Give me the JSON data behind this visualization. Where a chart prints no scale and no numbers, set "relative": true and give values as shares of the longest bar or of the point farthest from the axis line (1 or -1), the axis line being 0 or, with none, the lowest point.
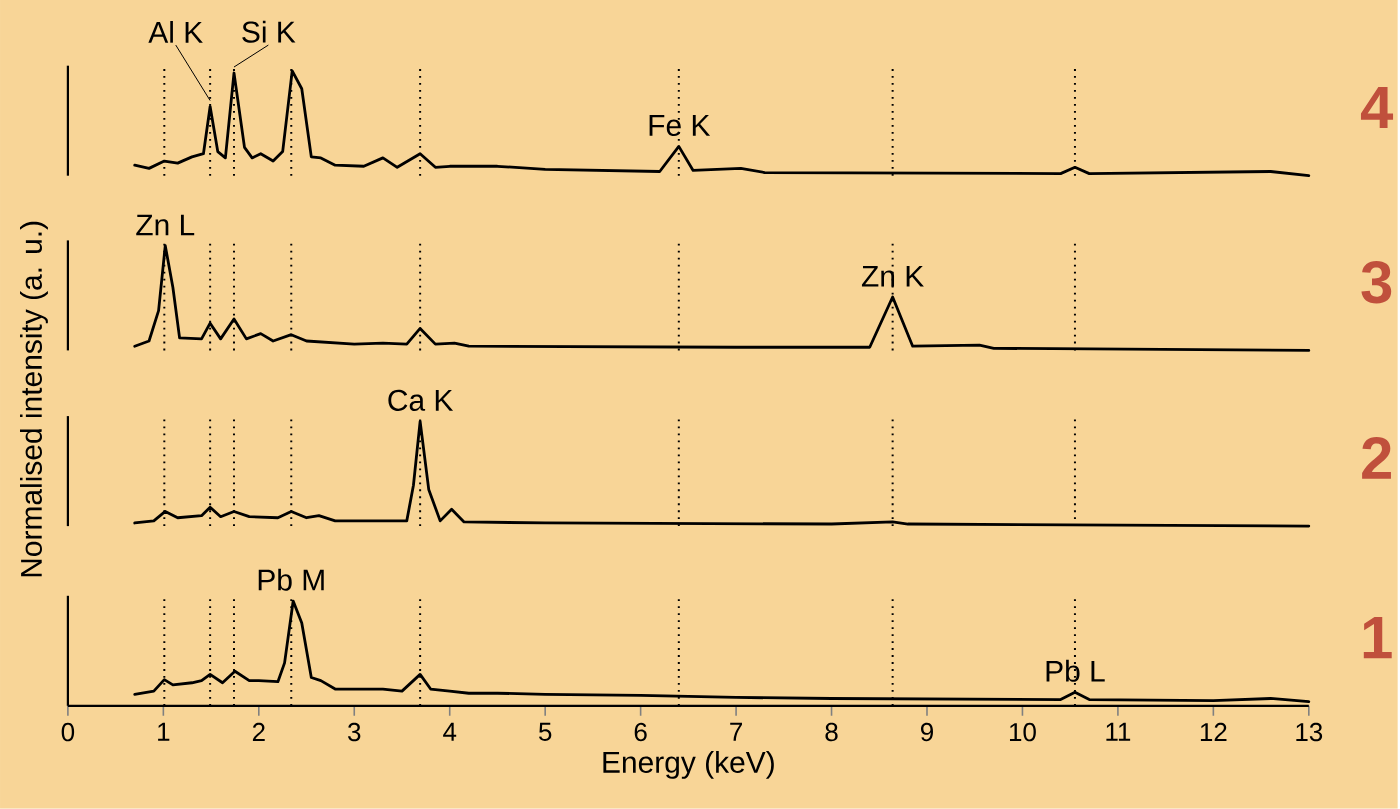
{
  "chart_data": [
    {
      "type": "line",
      "relative": true,
      "xlim": [
        0,
        13
      ],
      "tick_labels": false,
      "line_style": "solid",
      "marker": "none",
      "x": [
        0.7,
        0.85,
        1.01,
        1.15,
        1.3,
        1.42,
        1.49,
        1.57,
        1.65,
        1.74,
        1.85,
        1.93,
        2.02,
        2.15,
        2.25,
        2.35,
        2.45,
        2.55,
        2.65,
        2.8,
        3.1,
        3.3,
        3.45,
        3.69,
        3.85,
        4.0,
        4.5,
        5.0,
        6.2,
        6.4,
        6.55,
        7.05,
        7.3,
        10.4,
        10.55,
        10.7,
        12.6,
        13.0
      ],
      "series": [
        {
          "color": "#000000",
          "values": [
            0.1,
            0.07,
            0.14,
            0.12,
            0.18,
            0.21,
            0.66,
            0.23,
            0.17,
            0.98,
            0.27,
            0.17,
            0.21,
            0.14,
            0.23,
            1.0,
            0.83,
            0.18,
            0.17,
            0.1,
            0.09,
            0.17,
            0.08,
            0.21,
            0.08,
            0.09,
            0.09,
            0.06,
            0.04,
            0.28,
            0.05,
            0.07,
            0.03,
            0.02,
            0.08,
            0.02,
            0.04,
            0.0
          ]
        }
      ],
      "ref_lines": [
        {
          "axis": "x",
          "value": 1.01,
          "color": "#000000",
          "line_style": "dotted"
        },
        {
          "axis": "x",
          "value": 1.49,
          "color": "#000000",
          "line_style": "dotted"
        },
        {
          "axis": "x",
          "value": 1.74,
          "color": "#000000",
          "line_style": "dotted"
        },
        {
          "axis": "x",
          "value": 2.34,
          "color": "#000000",
          "line_style": "dotted"
        },
        {
          "axis": "x",
          "value": 3.69,
          "color": "#000000",
          "line_style": "dotted"
        },
        {
          "axis": "x",
          "value": 6.4,
          "color": "#000000",
          "line_style": "dotted"
        },
        {
          "axis": "x",
          "value": 8.64,
          "color": "#000000",
          "line_style": "dotted"
        },
        {
          "axis": "x",
          "value": 10.55,
          "color": "#000000",
          "line_style": "dotted"
        }
      ],
      "annotations": [
        "4",
        {
          "text": "Al K",
          "x": 1.49,
          "y": 0.66
        },
        {
          "text": "Si K",
          "x": 1.74,
          "y": 0.98
        },
        {
          "text": "Fe K",
          "x": 6.4,
          "y": 0.28
        }
      ]
    },
    {
      "type": "line",
      "relative": true,
      "xlim": [
        0,
        13
      ],
      "tick_labels": false,
      "line_style": "solid",
      "marker": "none",
      "x": [
        0.7,
        0.85,
        0.95,
        1.02,
        1.1,
        1.17,
        1.4,
        1.49,
        1.6,
        1.74,
        1.87,
        2.02,
        2.15,
        2.34,
        2.5,
        3.0,
        3.3,
        3.55,
        3.69,
        3.85,
        4.05,
        4.2,
        7.0,
        8.4,
        8.64,
        8.85,
        9.55,
        9.7,
        13.0
      ],
      "series": [
        {
          "color": "#000000",
          "values": [
            0.04,
            0.09,
            0.38,
            1.0,
            0.6,
            0.12,
            0.11,
            0.26,
            0.11,
            0.3,
            0.11,
            0.16,
            0.09,
            0.15,
            0.09,
            0.06,
            0.07,
            0.06,
            0.21,
            0.06,
            0.07,
            0.04,
            0.03,
            0.03,
            0.51,
            0.04,
            0.05,
            0.02,
            0.0
          ]
        }
      ],
      "ref_lines": [
        {
          "axis": "x",
          "value": 1.01,
          "color": "#000000",
          "line_style": "dotted"
        },
        {
          "axis": "x",
          "value": 1.49,
          "color": "#000000",
          "line_style": "dotted"
        },
        {
          "axis": "x",
          "value": 1.74,
          "color": "#000000",
          "line_style": "dotted"
        },
        {
          "axis": "x",
          "value": 2.34,
          "color": "#000000",
          "line_style": "dotted"
        },
        {
          "axis": "x",
          "value": 3.69,
          "color": "#000000",
          "line_style": "dotted"
        },
        {
          "axis": "x",
          "value": 6.4,
          "color": "#000000",
          "line_style": "dotted"
        },
        {
          "axis": "x",
          "value": 8.64,
          "color": "#000000",
          "line_style": "dotted"
        },
        {
          "axis": "x",
          "value": 10.55,
          "color": "#000000",
          "line_style": "dotted"
        }
      ],
      "annotations": [
        "3",
        {
          "text": "Zn L",
          "x": 1.02,
          "y": 1.0
        },
        {
          "text": "Zn K",
          "x": 8.64,
          "y": 0.51
        }
      ]
    },
    {
      "type": "line",
      "relative": true,
      "xlim": [
        0,
        13
      ],
      "tick_labels": false,
      "line_style": "solid",
      "marker": "none",
      "x": [
        0.7,
        0.9,
        1.02,
        1.15,
        1.4,
        1.49,
        1.6,
        1.74,
        1.9,
        2.2,
        2.34,
        2.5,
        2.63,
        2.8,
        3.3,
        3.55,
        3.62,
        3.69,
        3.78,
        3.9,
        4.02,
        4.15,
        5.0,
        8.0,
        8.64,
        8.8,
        13.0
      ],
      "series": [
        {
          "color": "#000000",
          "values": [
            0.03,
            0.05,
            0.14,
            0.08,
            0.1,
            0.18,
            0.09,
            0.14,
            0.09,
            0.08,
            0.14,
            0.08,
            0.1,
            0.05,
            0.05,
            0.05,
            0.39,
            1.0,
            0.35,
            0.05,
            0.16,
            0.04,
            0.03,
            0.02,
            0.04,
            0.02,
            0.0
          ]
        }
      ],
      "ref_lines": [
        {
          "axis": "x",
          "value": 1.01,
          "color": "#000000",
          "line_style": "dotted"
        },
        {
          "axis": "x",
          "value": 1.49,
          "color": "#000000",
          "line_style": "dotted"
        },
        {
          "axis": "x",
          "value": 1.74,
          "color": "#000000",
          "line_style": "dotted"
        },
        {
          "axis": "x",
          "value": 2.34,
          "color": "#000000",
          "line_style": "dotted"
        },
        {
          "axis": "x",
          "value": 3.69,
          "color": "#000000",
          "line_style": "dotted"
        },
        {
          "axis": "x",
          "value": 6.4,
          "color": "#000000",
          "line_style": "dotted"
        },
        {
          "axis": "x",
          "value": 8.64,
          "color": "#000000",
          "line_style": "dotted"
        },
        {
          "axis": "x",
          "value": 10.55,
          "color": "#000000",
          "line_style": "dotted"
        }
      ],
      "annotations": [
        "2",
        {
          "text": "Ca K",
          "x": 3.69,
          "y": 1.0
        }
      ]
    },
    {
      "type": "line",
      "relative": true,
      "xlim": [
        0,
        13
      ],
      "xticks": [
        0,
        1,
        2,
        3,
        4,
        5,
        6,
        7,
        8,
        9,
        10,
        11,
        12,
        13
      ],
      "tick_labels": "x",
      "xlabel": "Energy (keV)",
      "ylabel": "Normalised intensity (a. u.)",
      "line_style": "solid",
      "marker": "none",
      "x": [
        0.7,
        0.9,
        1.01,
        1.1,
        1.3,
        1.4,
        1.49,
        1.62,
        1.75,
        1.9,
        2.0,
        2.2,
        2.27,
        2.36,
        2.45,
        2.55,
        2.65,
        2.8,
        3.1,
        3.3,
        3.5,
        3.69,
        3.8,
        4.0,
        4.2,
        4.5,
        5.0,
        6.0,
        7.0,
        8.0,
        10.4,
        10.55,
        10.7,
        12.0,
        12.6,
        13.0
      ],
      "series": [
        {
          "color": "#000000",
          "values": [
            0.11,
            0.14,
            0.25,
            0.2,
            0.22,
            0.24,
            0.3,
            0.22,
            0.33,
            0.24,
            0.24,
            0.23,
            0.41,
            1.0,
            0.79,
            0.27,
            0.24,
            0.16,
            0.16,
            0.16,
            0.14,
            0.3,
            0.16,
            0.14,
            0.12,
            0.12,
            0.11,
            0.1,
            0.08,
            0.07,
            0.06,
            0.13,
            0.06,
            0.05,
            0.07,
            0.04
          ]
        }
      ],
      "ref_lines": [
        {
          "axis": "x",
          "value": 1.01,
          "color": "#000000",
          "line_style": "dotted"
        },
        {
          "axis": "x",
          "value": 1.49,
          "color": "#000000",
          "line_style": "dotted"
        },
        {
          "axis": "x",
          "value": 1.74,
          "color": "#000000",
          "line_style": "dotted"
        },
        {
          "axis": "x",
          "value": 2.34,
          "color": "#000000",
          "line_style": "dotted"
        },
        {
          "axis": "x",
          "value": 3.69,
          "color": "#000000",
          "line_style": "dotted"
        },
        {
          "axis": "x",
          "value": 6.4,
          "color": "#000000",
          "line_style": "dotted"
        },
        {
          "axis": "x",
          "value": 8.64,
          "color": "#000000",
          "line_style": "dotted"
        },
        {
          "axis": "x",
          "value": 10.55,
          "color": "#000000",
          "line_style": "dotted"
        }
      ],
      "annotations": [
        "1",
        {
          "text": "Pb M",
          "x": 2.34,
          "y": 1.0
        },
        {
          "text": "Pb L",
          "x": 10.55,
          "y": 0.13
        }
      ]
    }
  ]
}
